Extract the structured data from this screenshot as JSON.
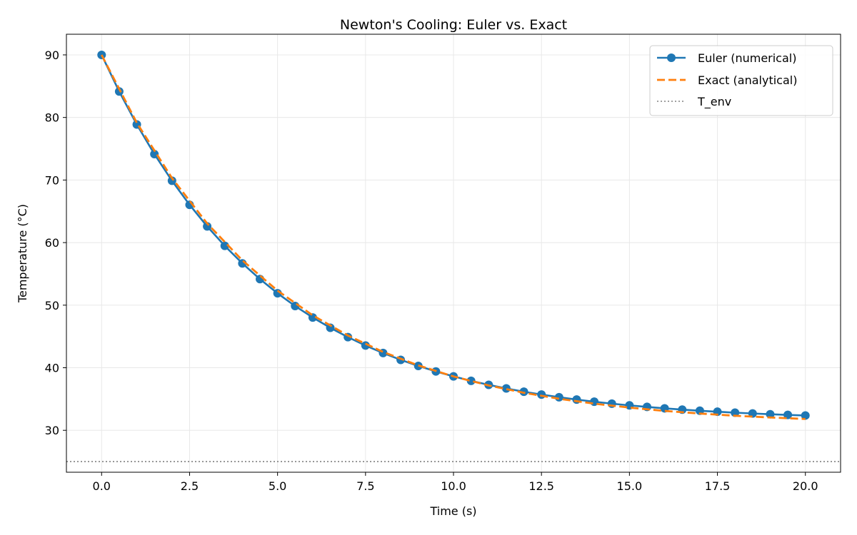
{
  "chart_data": {
    "type": "line",
    "title": "Newton's Cooling: Euler vs. Exact",
    "xlabel": "Time (s)",
    "ylabel": "Temperature (°C)",
    "xlim": [
      -1.0,
      21.0
    ],
    "ylim": [
      23.3,
      93.3
    ],
    "xticks": [
      0.0,
      2.5,
      5.0,
      7.5,
      10.0,
      12.5,
      15.0,
      17.5,
      20.0
    ],
    "xtick_labels": [
      "0.0",
      "2.5",
      "5.0",
      "7.5",
      "10.0",
      "12.5",
      "15.0",
      "17.5",
      "20.0"
    ],
    "yticks": [
      30,
      40,
      50,
      60,
      70,
      80,
      90
    ],
    "ytick_labels": [
      "30",
      "40",
      "50",
      "60",
      "70",
      "80",
      "90"
    ],
    "grid": true,
    "legend_position": "top-right",
    "series": [
      {
        "name": "Euler (numerical)",
        "style": "solid-with-markers",
        "color": "#1f77b4",
        "x": [
          0.0,
          0.5,
          1.0,
          1.5,
          2.0,
          2.5,
          3.0,
          3.5,
          4.0,
          4.5,
          5.0,
          5.5,
          6.0,
          6.5,
          7.0,
          7.5,
          8.0,
          8.5,
          9.0,
          9.5,
          10.0,
          10.5,
          11.0,
          11.5,
          12.0,
          12.5,
          13.0,
          13.5,
          14.0,
          14.5,
          15.0,
          15.5,
          16.0,
          16.5,
          17.0,
          17.5,
          18.0,
          18.5,
          19.0,
          19.5,
          20.0
        ],
        "y": [
          90.0,
          84.15,
          78.88,
          74.14,
          69.88,
          66.04,
          62.59,
          59.48,
          56.68,
          54.17,
          51.9,
          49.86,
          48.03,
          46.38,
          44.89,
          43.55,
          42.35,
          41.26,
          40.29,
          39.41,
          38.62,
          37.91,
          37.27,
          36.69,
          36.17,
          35.71,
          35.29,
          34.91,
          34.57,
          34.26,
          33.99,
          33.74,
          33.51,
          33.31,
          33.13,
          32.97,
          32.82,
          32.69,
          32.57,
          32.46,
          32.37
        ]
      },
      {
        "name": "Exact (analytical)",
        "style": "dashed",
        "color": "#ff7f0e",
        "x": [
          0.0,
          1.0,
          2.0,
          3.0,
          4.0,
          5.0,
          6.0,
          7.0,
          8.0,
          9.0,
          10.0,
          11.0,
          12.0,
          13.0,
          14.0,
          15.0,
          16.0,
          17.0,
          18.0,
          19.0,
          20.0
        ],
        "y": [
          90.0,
          79.15,
          70.31,
          63.06,
          57.16,
          52.32,
          48.38,
          45.15,
          42.52,
          40.37,
          38.61,
          37.17,
          36.0,
          35.04,
          34.26,
          33.63,
          33.1,
          32.68,
          32.33,
          32.05,
          31.81
        ]
      },
      {
        "name": "T_env",
        "style": "dotted",
        "color": "#808080",
        "y_constant": 25
      }
    ]
  }
}
